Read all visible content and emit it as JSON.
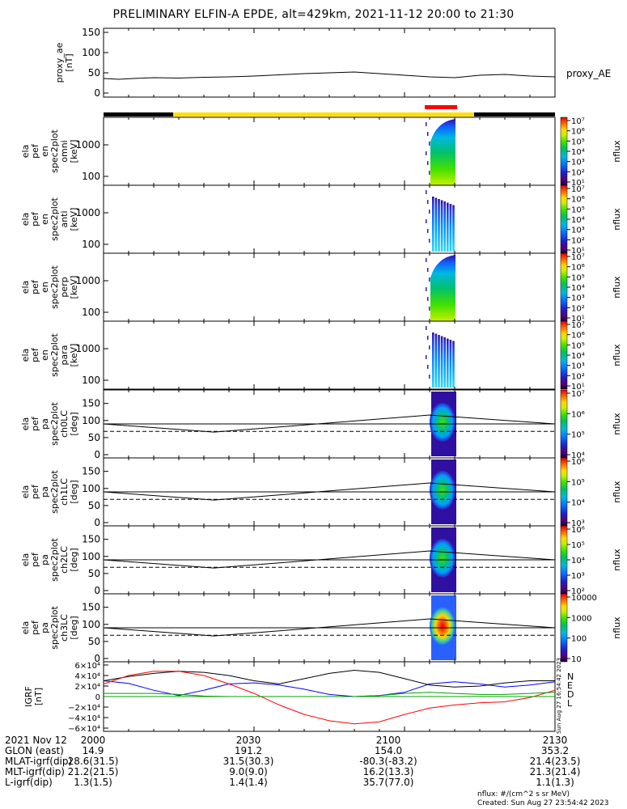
{
  "title": "PRELIMINARY ELFIN-A EPDE, alt=429km, 2021-11-12 20:00 to 21:30",
  "chart_data": {
    "type": "multi-panel spectrogram / line",
    "x_ticks": [
      "2000",
      "2030",
      "2100",
      "2130"
    ],
    "x_range_min": [
      0,
      90
    ],
    "proxy_ae": {
      "ylabel": [
        "proxy_ae",
        "[nT]"
      ],
      "legend": "proxy_AE",
      "yticks": [
        "150",
        "100",
        "50",
        "0"
      ],
      "ylim": [
        0,
        150
      ],
      "x": [
        0,
        3,
        6,
        10,
        15,
        20,
        25,
        30,
        35,
        40,
        45,
        50,
        55,
        60,
        65,
        70,
        75,
        80,
        85,
        90
      ],
      "values": [
        36,
        34,
        36,
        38,
        37,
        39,
        40,
        42,
        45,
        48,
        50,
        52,
        48,
        44,
        40,
        38,
        44,
        46,
        42,
        40
      ]
    },
    "energy_panels": [
      {
        "ylabel": [
          "ela",
          "pef",
          "en",
          "spec2plot",
          "omni",
          "[keV]"
        ],
        "yticks": [
          "1000",
          "100"
        ],
        "cb_ticks": [
          "10⁷",
          "10⁶",
          "10⁵",
          "10⁴",
          "10³",
          "10²",
          "10¹"
        ],
        "cb_label": "nflux"
      },
      {
        "ylabel": [
          "ela",
          "pef",
          "en",
          "spec2plot",
          "anti",
          "[keV]"
        ],
        "yticks": [
          "1000",
          "100"
        ],
        "cb_ticks": [
          "10⁷",
          "10⁶",
          "10⁵",
          "10⁴",
          "10³",
          "10²",
          "10¹"
        ],
        "cb_label": "nflux"
      },
      {
        "ylabel": [
          "ela",
          "pef",
          "en",
          "spec2plot",
          "perp",
          "[keV]"
        ],
        "yticks": [
          "1000",
          "100"
        ],
        "cb_ticks": [
          "10⁷",
          "10⁶",
          "10⁵",
          "10⁴",
          "10³",
          "10²",
          "10¹"
        ],
        "cb_label": "nflux"
      },
      {
        "ylabel": [
          "ela",
          "pef",
          "en",
          "spec2plot",
          "para",
          "[keV]"
        ],
        "yticks": [
          "1000",
          "100"
        ],
        "cb_ticks": [
          "10⁷",
          "10⁶",
          "10⁵",
          "10⁴",
          "10³",
          "10²",
          "10¹"
        ],
        "cb_label": "nflux"
      }
    ],
    "pitch_panels": [
      {
        "ylabel": [
          "ela",
          "pef",
          "pa",
          "spec2plot",
          "ch0LC",
          "[deg]"
        ],
        "yticks": [
          "150",
          "100",
          "50",
          "0"
        ],
        "cb_ticks": [
          "10⁷",
          "10⁶",
          "10⁵",
          "10⁴"
        ],
        "cb_label": "nflux"
      },
      {
        "ylabel": [
          "ela",
          "pef",
          "pa",
          "spec2plot",
          "ch1LC",
          "[deg]"
        ],
        "yticks": [
          "150",
          "100",
          "50",
          "0"
        ],
        "cb_ticks": [
          "10⁶",
          "10⁵",
          "10⁴",
          "10³"
        ],
        "cb_label": "nflux"
      },
      {
        "ylabel": [
          "ela",
          "pef",
          "pa",
          "spec2plot",
          "ch2LC",
          "[deg]"
        ],
        "yticks": [
          "150",
          "100",
          "50",
          "0"
        ],
        "cb_ticks": [
          "10⁶",
          "10⁵",
          "10⁴",
          "10³",
          "10²"
        ],
        "cb_label": "nflux"
      },
      {
        "ylabel": [
          "ela",
          "pef",
          "pa",
          "spec2plot",
          "ch3LC",
          "[deg]"
        ],
        "yticks": [
          "150",
          "100",
          "50",
          "0"
        ],
        "cb_ticks": [
          "10000",
          "1000",
          "100",
          "10"
        ],
        "cb_label": "nflux"
      }
    ],
    "igrf": {
      "ylabel": [
        "IGRF",
        "[nT]"
      ],
      "yticks": [
        "6×10⁴",
        "4×10⁴",
        "2×10⁴",
        "0",
        "−2×10⁴",
        "−4×10⁴",
        "−6×10⁴"
      ],
      "ylim": [
        -60000,
        60000
      ],
      "legend": [
        {
          "name": "N",
          "color": "#0000ff"
        },
        {
          "name": "E",
          "color": "#000000"
        },
        {
          "name": "D",
          "color": "#ff0000"
        },
        {
          "name": "L",
          "color": "#00a000"
        }
      ],
      "x": [
        0,
        5,
        10,
        15,
        20,
        25,
        30,
        35,
        40,
        45,
        50,
        55,
        60,
        65,
        70,
        75,
        80,
        85,
        90
      ],
      "N": [
        30000,
        25000,
        12000,
        2000,
        12000,
        24000,
        26000,
        22000,
        14000,
        4000,
        0,
        2000,
        8000,
        24000,
        28000,
        24000,
        18000,
        22000,
        28000
      ],
      "E": [
        30000,
        38000,
        44000,
        48000,
        46000,
        40000,
        30000,
        24000,
        34000,
        44000,
        50000,
        46000,
        34000,
        22000,
        18000,
        20000,
        26000,
        30000,
        30000
      ],
      "D": [
        24000,
        40000,
        48000,
        48000,
        40000,
        24000,
        6000,
        -16000,
        -34000,
        -46000,
        -52000,
        -48000,
        -34000,
        -22000,
        -16000,
        -12000,
        -10000,
        -2000,
        12000
      ],
      "L": [
        6000,
        6000,
        6000,
        4000,
        1000,
        0,
        0,
        0,
        0,
        0,
        0,
        2000,
        6000,
        8000,
        6000,
        4000,
        4000,
        6000,
        8000
      ]
    }
  },
  "table": {
    "rows": [
      {
        "label": "2021 Nov 12",
        "values": [
          "2000",
          "2030",
          "2100",
          "2130"
        ]
      },
      {
        "label": "GLON (east)",
        "values": [
          "14.9",
          "191.2",
          "154.0",
          "353.2"
        ]
      },
      {
        "label": "MLAT-igrf(dip)",
        "values": [
          "28.6(31.5)",
          "31.5(30.3)",
          "-80.3(-83.2)",
          "21.4(23.5)"
        ]
      },
      {
        "label": "MLT-igrf(dip)",
        "values": [
          "21.2(21.5)",
          "9.0(9.0)",
          "16.2(13.3)",
          "21.3(21.4)"
        ]
      },
      {
        "label": "L-igrf(dip)",
        "values": [
          "1.3(1.5)",
          "1.4(1.4)",
          "35.7(77.0)",
          "1.1(1.3)"
        ]
      }
    ]
  },
  "footer": {
    "units": "nflux: #/(cm^2 s sr MeV)",
    "created": "Created: Sun Aug 27 23:54:42 2023",
    "side_stamp": "Sun Aug 27 16:54:42 2023"
  }
}
